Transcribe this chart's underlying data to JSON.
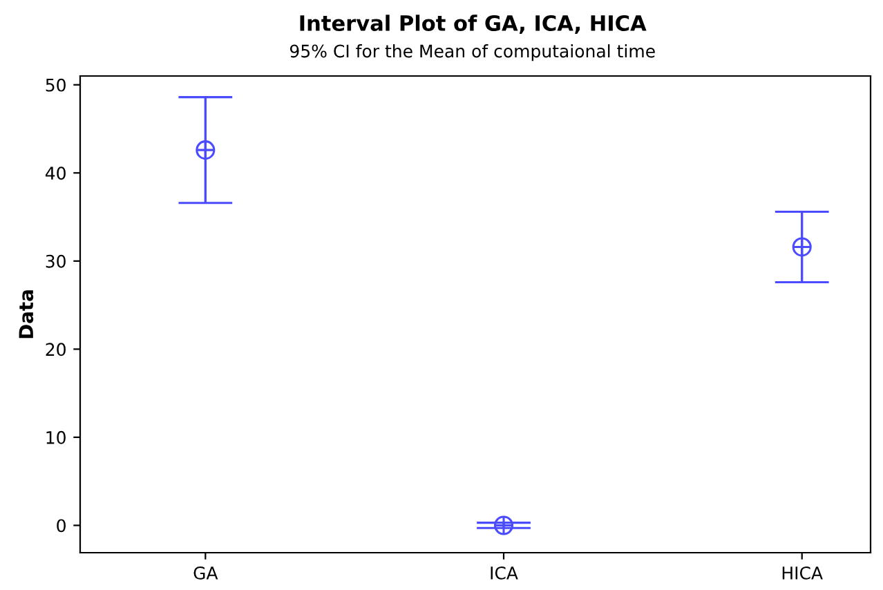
{
  "chart_data": {
    "type": "scatter",
    "title": "Interval Plot of GA, ICA, HICA",
    "subtitle": "95% CI for the Mean of computaional time",
    "ylabel": "Data",
    "categories": [
      "GA",
      "ICA",
      "HICA"
    ],
    "series": [
      {
        "color": "#4b4bff",
        "values": [
          42.6,
          0,
          31.6
        ],
        "errors": [
          6.0,
          0.3,
          4.0
        ]
      }
    ],
    "ylim": [
      -3.1,
      51
    ],
    "yticks": [
      0,
      10,
      20,
      30,
      40,
      50
    ],
    "grid": false,
    "legend": false,
    "marker": "circle"
  }
}
